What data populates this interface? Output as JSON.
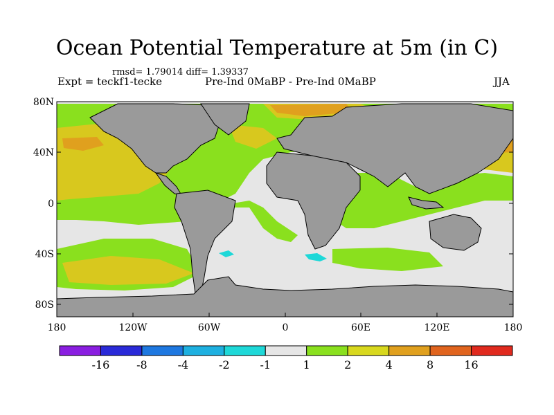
{
  "title": "Ocean Potential Temperature at 5m (in C)",
  "stats_line": "rmsd= 1.79014 diff= 1.39337",
  "experiment_label": "Expt = teckf1-tecke",
  "runs_label": "Pre-Ind 0MaBP - Pre-Ind 0MaBP",
  "season": "JJA",
  "lat_labels": [
    "80N",
    "40N",
    "0",
    "40S",
    "80S"
  ],
  "lon_labels": [
    "180",
    "120W",
    "60W",
    "0",
    "60E",
    "120E",
    "180"
  ],
  "colorbar": {
    "colors": [
      "#8a1ee0",
      "#2a2ad8",
      "#1e78e0",
      "#1eb0e0",
      "#1ed8d8",
      "#e6e6e6",
      "#8ae01e",
      "#d8d81e",
      "#e0a01e",
      "#e0641e",
      "#e02a1e"
    ],
    "labels": [
      "-16",
      "-8",
      "-4",
      "-2",
      "-1",
      "1",
      "2",
      "4",
      "8",
      "16"
    ]
  },
  "colors": {
    "land": "#9a9a9a",
    "ocean_neutral": "#e6e6e6",
    "green": "#8ae01e",
    "yellow": "#d8c81e",
    "orange": "#e0a01e",
    "cyan": "#1ed8d8"
  }
}
